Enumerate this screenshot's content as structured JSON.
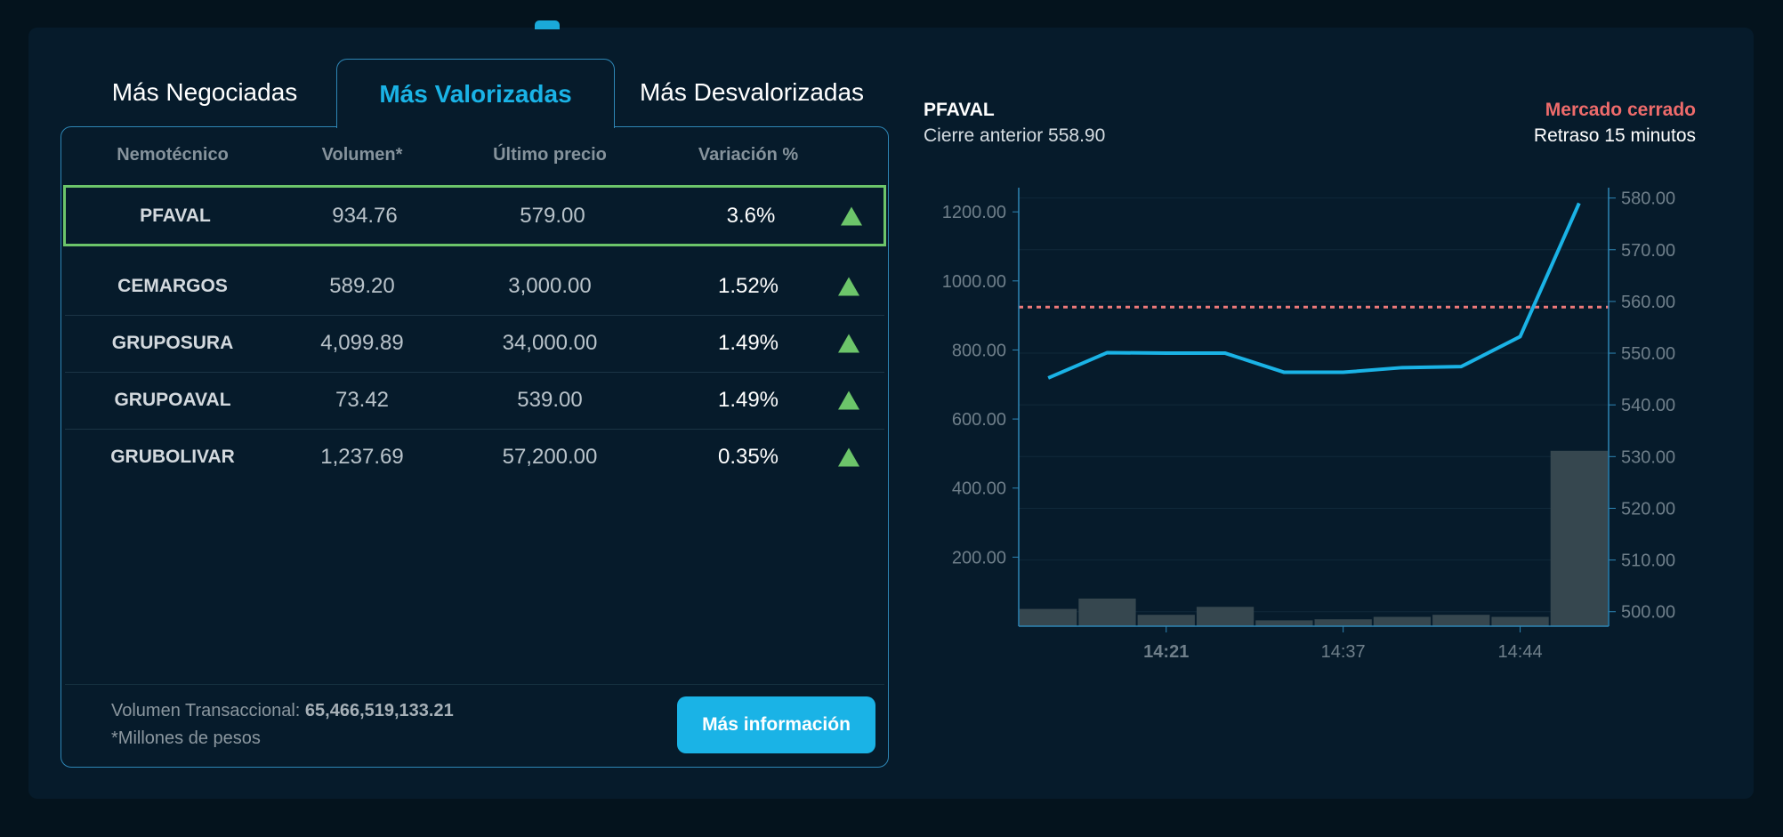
{
  "tabs": [
    {
      "label": "Más Negociadas",
      "active": false
    },
    {
      "label": "Más Valorizadas",
      "active": true
    },
    {
      "label": "Más Desvalorizadas",
      "active": false
    }
  ],
  "table": {
    "headers": [
      "Nemotécnico",
      "Volumen*",
      "Último precio",
      "Variación %"
    ],
    "rows": [
      {
        "symbol": "PFAVAL",
        "volume": "934.76",
        "last_price": "579.00",
        "variation": "3.6%",
        "trend": "up",
        "selected": true
      },
      {
        "symbol": "CEMARGOS",
        "volume": "589.20",
        "last_price": "3,000.00",
        "variation": "1.52%",
        "trend": "up"
      },
      {
        "symbol": "GRUPOSURA",
        "volume": "4,099.89",
        "last_price": "34,000.00",
        "variation": "1.49%",
        "trend": "up"
      },
      {
        "symbol": "GRUPOAVAL",
        "volume": "73.42",
        "last_price": "539.00",
        "variation": "1.49%",
        "trend": "up"
      },
      {
        "symbol": "GRUBOLIVAR",
        "volume": "1,237.69",
        "last_price": "57,200.00",
        "variation": "0.35%",
        "trend": "up"
      }
    ]
  },
  "footer": {
    "volume_label": "Volumen Transaccional:",
    "volume_value": "65,466,519,133.21",
    "note": "*Millones de pesos",
    "more_button": "Más información"
  },
  "chart_header": {
    "symbol": "PFAVAL",
    "previous_close": "Cierre anterior 558.90",
    "market_status": "Mercado cerrado",
    "delay": "Retraso 15 minutos"
  },
  "colors": {
    "accent": "#1ab3e6",
    "up": "#6cc56a",
    "closed": "#ee6b6b",
    "bars": "#36474f",
    "reference": "#ee7a7a"
  },
  "chart_data": {
    "type": "line+bar",
    "x_tick_labels": [
      {
        "index": 2,
        "label": "14:21",
        "bold": true
      },
      {
        "index": 5,
        "label": "14:37"
      },
      {
        "index": 8,
        "label": "14:44"
      }
    ],
    "price": [
      545.2,
      550.1,
      550.0,
      550.0,
      546.3,
      546.3,
      547.2,
      547.4,
      553.2,
      579.0
    ],
    "volume": [
      50,
      80,
      33,
      56,
      17,
      20,
      27,
      33,
      27,
      508
    ],
    "reference_line": 558.9,
    "left_axis": {
      "ylim": [
        0,
        1270
      ],
      "ticks": [
        "200.00",
        "400.00",
        "600.00",
        "800.00",
        "1000.00",
        "1200.00"
      ]
    },
    "right_axis": {
      "ylim": [
        497.2,
        582
      ],
      "ticks": [
        "500.00",
        "510.00",
        "520.00",
        "530.00",
        "540.00",
        "550.00",
        "560.00",
        "570.00",
        "580.00"
      ]
    },
    "grid": true
  }
}
